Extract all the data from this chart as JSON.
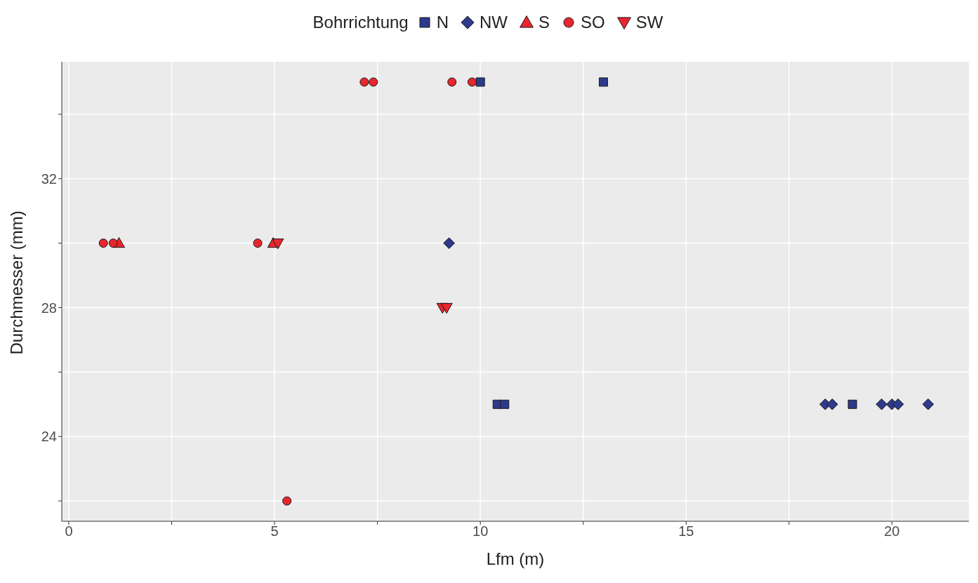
{
  "chart_data": {
    "type": "scatter",
    "xlabel": "Lfm (m)",
    "ylabel": "Durchmesser (mm)",
    "legend_title": "Bohrrichtung",
    "legend": "top",
    "grid": true,
    "xlim": [
      -0.17,
      21.87
    ],
    "ylim": [
      21.37,
      35.63
    ],
    "xticks": [
      0,
      {
        "value": 2.5,
        "label": null
      },
      5,
      {
        "value": 7.5,
        "label": null
      },
      10,
      {
        "value": 12.5,
        "label": null
      },
      15,
      {
        "value": 17.5,
        "label": null
      },
      20
    ],
    "yticks": [
      {
        "value": 22,
        "label": null
      },
      24,
      {
        "value": 26,
        "label": null
      },
      28,
      {
        "value": 30,
        "label": null
      },
      32,
      {
        "value": 34,
        "label": null
      }
    ],
    "series": [
      {
        "name": "N",
        "color": "#2e3a8c",
        "marker": "square",
        "x": [
          10.0,
          12.99,
          10.41,
          10.59,
          19.04
        ],
        "values": [
          35,
          35,
          25,
          25,
          25
        ]
      },
      {
        "name": "NW",
        "color": "#2e3a8c",
        "marker": "diamond",
        "x": [
          9.24,
          18.38,
          18.55,
          19.75,
          20.0,
          20.15,
          20.88
        ],
        "values": [
          30,
          25,
          25,
          25,
          25,
          25,
          25
        ]
      },
      {
        "name": "S",
        "color": "#e8262e",
        "marker": "triangle",
        "x": [
          1.22,
          4.97
        ],
        "values": [
          30,
          30
        ]
      },
      {
        "name": "SO",
        "color": "#e8262e",
        "marker": "circle",
        "x": [
          0.84,
          1.08,
          4.59,
          5.3,
          7.18,
          7.4,
          9.31,
          9.8
        ],
        "values": [
          30,
          30,
          30,
          22,
          35,
          35,
          35,
          35
        ]
      },
      {
        "name": "SW",
        "color": "#e8262e",
        "marker": "triangle-down",
        "x": [
          5.08,
          9.08,
          9.18
        ],
        "values": [
          30,
          28,
          28
        ]
      }
    ]
  }
}
